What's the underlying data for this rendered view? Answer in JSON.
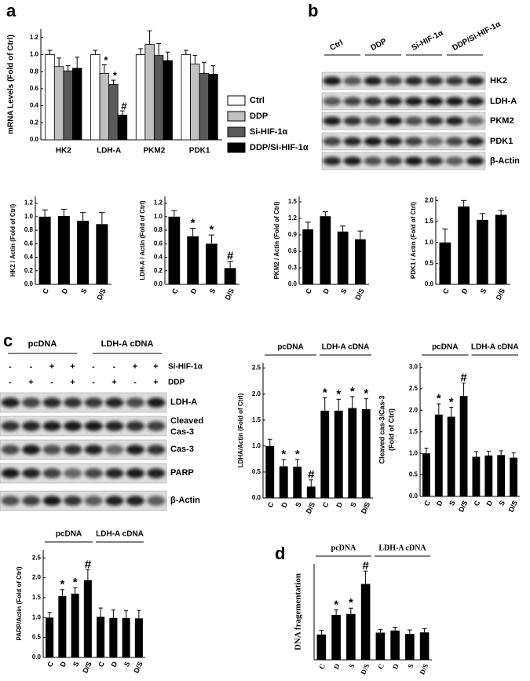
{
  "panels": [
    "a",
    "b",
    "c",
    "d"
  ],
  "blot_b": {
    "lanes": [
      "Ctrl",
      "DDP",
      "Si-HIF-1α",
      "DDP/Si-HIF-1α"
    ],
    "rows": [
      "HK2",
      "LDH-A",
      "PKM2",
      "PDK1",
      "β-Actin"
    ]
  },
  "blot_c": {
    "groups": [
      "pcDNA",
      "LDH-A cDNA"
    ],
    "conditions": [
      {
        "name": "Si-HIF-1α",
        "signs": [
          "-",
          "-",
          "+",
          "+",
          "-",
          "-",
          "+",
          "+"
        ]
      },
      {
        "name": "DDP",
        "signs": [
          "-",
          "+",
          "-",
          "+",
          "-",
          "+",
          "-",
          "+"
        ]
      }
    ],
    "rows": [
      "LDH-A",
      [
        "Cleaved",
        "Cas-3"
      ],
      "Cas-3",
      "PARP",
      "β-Actin"
    ]
  },
  "chart_data": [
    {
      "type": "grouped_bar",
      "ylabel": "mRNA Levels (Fold of Ctrl)",
      "categories": [
        "HK2",
        "LDH-A",
        "PKM2",
        "PDK1"
      ],
      "series": [
        {
          "name": "Ctrl",
          "color": "#ffffff",
          "values": [
            1.0,
            1.0,
            1.0,
            1.0
          ],
          "errors": [
            0.05,
            0.05,
            0.07,
            0.05
          ]
        },
        {
          "name": "DDP",
          "color": "#c0c0c0",
          "values": [
            0.86,
            0.78,
            1.12,
            0.89
          ],
          "errors": [
            0.1,
            0.1,
            0.16,
            0.1
          ],
          "marks": [
            null,
            "*",
            null,
            null
          ]
        },
        {
          "name": "Si-HIF-1α",
          "color": "#5a5a5a",
          "values": [
            0.81,
            0.65,
            0.99,
            0.78
          ],
          "errors": [
            0.06,
            0.05,
            0.14,
            0.13
          ],
          "marks": [
            null,
            "*",
            null,
            null
          ]
        },
        {
          "name": "DDP/Si-HIF-1α",
          "color": "#000000",
          "values": [
            0.84,
            0.29,
            0.93,
            0.77
          ],
          "errors": [
            0.13,
            0.05,
            0.1,
            0.1
          ],
          "marks": [
            null,
            "#",
            null,
            null
          ]
        }
      ],
      "ylim": [
        0,
        1.3
      ],
      "yticks": [
        {
          "value": 0,
          "label": "0.0"
        },
        0.2,
        0.4,
        0.6,
        0.8,
        {
          "value": 1,
          "label": "1.0"
        },
        1.2
      ]
    },
    {
      "type": "bar",
      "ylabel": "HK2 / Actin (Fold of Ctrl)",
      "categories": [
        "C",
        "D",
        "S",
        "D/S"
      ],
      "values": [
        1.0,
        1.01,
        0.94,
        0.89
      ],
      "errors": [
        0.1,
        0.1,
        0.12,
        0.17
      ],
      "color": "#000000",
      "ylim": [
        0,
        1.3
      ],
      "yticks": [
        {
          "value": 0,
          "label": "0.0"
        },
        0.2,
        0.4,
        0.6,
        0.8,
        {
          "value": 1,
          "label": "1.0"
        },
        1.2
      ]
    },
    {
      "type": "bar",
      "ylabel": "LDH-A / Actin (Fold of Ctrl)",
      "categories": [
        "C",
        "D",
        "S",
        "D/S"
      ],
      "values": [
        1.0,
        0.71,
        0.6,
        0.24
      ],
      "errors": [
        0.09,
        0.12,
        0.13,
        0.1
      ],
      "marks": [
        null,
        "*",
        "*",
        "#"
      ],
      "color": "#000000",
      "ylim": [
        0,
        1.3
      ],
      "yticks": [
        {
          "value": 0,
          "label": "0.0"
        },
        0.2,
        0.4,
        0.6,
        0.8,
        {
          "value": 1,
          "label": "1.0"
        },
        1.2
      ]
    },
    {
      "type": "bar",
      "ylabel": "PKM2 / Actin (Fold of Ctrl)",
      "categories": [
        "C",
        "D",
        "S",
        "D/S"
      ],
      "values": [
        1.0,
        1.24,
        0.96,
        0.82
      ],
      "errors": [
        0.13,
        0.08,
        0.1,
        0.15
      ],
      "color": "#000000",
      "ylim": [
        0,
        1.6
      ],
      "yticks": [
        {
          "value": 0,
          "label": "0.0"
        },
        0.3,
        0.6,
        0.9,
        1.2,
        1.5
      ]
    },
    {
      "type": "bar",
      "ylabel": "PDK1 / Actin (Fold of Ctrl)",
      "categories": [
        "C",
        "D",
        "S",
        "D/S"
      ],
      "values": [
        1.0,
        1.86,
        1.54,
        1.66
      ],
      "errors": [
        0.32,
        0.14,
        0.15,
        0.1
      ],
      "color": "#000000",
      "ylim": [
        0,
        2.1
      ],
      "yticks": [
        {
          "value": 0,
          "label": "0.0"
        },
        0.5,
        {
          "value": 1,
          "label": "1.0"
        },
        1.5,
        {
          "value": 2,
          "label": "2.0"
        }
      ]
    },
    {
      "type": "bar",
      "ylabel": "LDHA/Actin (Fold of Ctrl)",
      "groups": [
        "pcDNA",
        "LDH-A cDNA"
      ],
      "categories": [
        "C",
        "D",
        "S",
        "D/S",
        "C",
        "D",
        "S",
        "D/S"
      ],
      "values": [
        1.0,
        0.61,
        0.6,
        0.22,
        1.68,
        1.68,
        1.73,
        1.71
      ],
      "errors": [
        0.13,
        0.13,
        0.14,
        0.13,
        0.25,
        0.22,
        0.22,
        0.2
      ],
      "marks": [
        null,
        "*",
        "*",
        "#",
        "*",
        "*",
        "*",
        "*"
      ],
      "color": "#000000",
      "ylim": [
        0,
        2.6
      ],
      "yticks": [
        {
          "value": 0,
          "label": "0.0"
        },
        0.5,
        {
          "value": 1,
          "label": "1.0"
        },
        1.5,
        {
          "value": 2,
          "label": "2.0"
        },
        2.5
      ]
    },
    {
      "type": "bar",
      "ylabel": [
        "Cleaved cas-3/Cas-3",
        "(Fold of Ctrl)"
      ],
      "groups": [
        "pcDNA",
        "LDH-A cDNA"
      ],
      "categories": [
        "C",
        "D",
        "S",
        "D/S",
        "C",
        "D",
        "S",
        "D/S"
      ],
      "values": [
        1.0,
        1.9,
        1.85,
        2.33,
        0.92,
        0.95,
        0.96,
        0.9
      ],
      "errors": [
        0.12,
        0.25,
        0.22,
        0.3,
        0.12,
        0.1,
        0.1,
        0.11
      ],
      "marks": [
        null,
        "*",
        "*",
        "#",
        null,
        null,
        null,
        null
      ],
      "color": "#000000",
      "ylim": [
        0,
        3.1
      ],
      "yticks": [
        {
          "value": 0,
          "label": "0.0"
        },
        0.5,
        {
          "value": 1,
          "label": "1.0"
        },
        1.5,
        {
          "value": 2,
          "label": "2.0"
        },
        2.5,
        {
          "value": 3,
          "label": "3.0"
        }
      ]
    },
    {
      "type": "bar",
      "ylabel": "PARP/Actin (Fold of Ctrl)",
      "groups": [
        "pcDNA",
        "LDH-A cDNA"
      ],
      "categories": [
        "C",
        "D",
        "S",
        "D/S",
        "C",
        "D",
        "S",
        "D/S"
      ],
      "values": [
        1.0,
        1.54,
        1.6,
        1.94,
        1.02,
        0.99,
        0.99,
        0.98
      ],
      "errors": [
        0.13,
        0.16,
        0.15,
        0.26,
        0.22,
        0.2,
        0.18,
        0.2
      ],
      "marks": [
        null,
        "*",
        "*",
        "#",
        null,
        null,
        null,
        null
      ],
      "color": "#000000",
      "ylim": [
        0,
        2.7
      ],
      "yticks": [
        {
          "value": 0,
          "label": "0.0"
        },
        0.5,
        {
          "value": 1,
          "label": "1.0"
        },
        1.5,
        {
          "value": 2,
          "label": "2.0"
        },
        2.5
      ]
    },
    {
      "type": "bar",
      "ylabel": "DNA fragementation",
      "groups": [
        "pcDNA",
        "LDH-A cDNA"
      ],
      "categories": [
        "C",
        "D",
        "S",
        "D/S",
        "C",
        "D",
        "S",
        "D/S"
      ],
      "values": [
        0.95,
        1.68,
        1.72,
        2.85,
        1.02,
        1.1,
        0.97,
        1.03
      ],
      "errors": [
        0.15,
        0.2,
        0.22,
        0.48,
        0.12,
        0.12,
        0.15,
        0.14
      ],
      "marks": [
        null,
        "*",
        "*",
        "#",
        null,
        null,
        null,
        null
      ],
      "color": "#000000",
      "ylim": [
        0,
        3.6
      ]
    }
  ]
}
